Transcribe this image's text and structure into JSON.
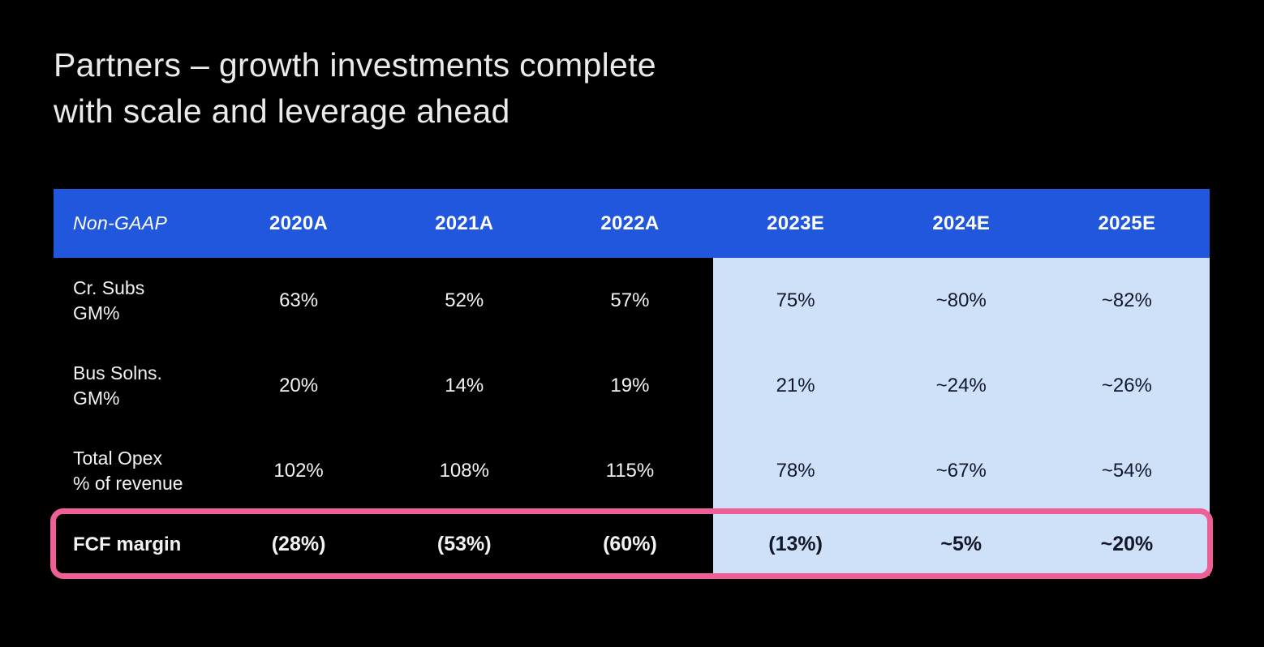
{
  "slide": {
    "title_line1": "Partners – growth investments complete",
    "title_line2": "with scale and leverage ahead"
  },
  "table": {
    "header": [
      "Non-GAAP",
      "2020A",
      "2021A",
      "2022A",
      "2023E",
      "2024E",
      "2025E"
    ],
    "rows": [
      {
        "label_lines": [
          "Cr. Subs",
          "GM%"
        ],
        "values": [
          "63%",
          "52%",
          "57%",
          "75%",
          "~80%",
          "~82%"
        ]
      },
      {
        "label_lines": [
          "Bus Solns.",
          "GM%"
        ],
        "values": [
          "20%",
          "14%",
          "19%",
          "21%",
          "~24%",
          "~26%"
        ]
      },
      {
        "label_lines": [
          "Total Opex",
          "% of revenue"
        ],
        "values": [
          "102%",
          "108%",
          "115%",
          "78%",
          "~67%",
          "~54%"
        ]
      },
      {
        "label_lines": [
          "FCF margin"
        ],
        "values": [
          "(28%)",
          "(53%)",
          "(60%)",
          "(13%)",
          "~5%",
          "~20%"
        ],
        "bold": true,
        "highlighted": true
      }
    ]
  },
  "chart_data": {
    "type": "table",
    "title": "Partners – growth investments complete with scale and leverage ahead",
    "columns": [
      "Non-GAAP",
      "2020A",
      "2021A",
      "2022A",
      "2023E",
      "2024E",
      "2025E"
    ],
    "rows": [
      [
        "Cr. Subs GM%",
        "63%",
        "52%",
        "57%",
        "75%",
        "~80%",
        "~82%"
      ],
      [
        "Bus Solns. GM%",
        "20%",
        "14%",
        "19%",
        "21%",
        "~24%",
        "~26%"
      ],
      [
        "Total Opex % of revenue",
        "102%",
        "108%",
        "115%",
        "78%",
        "~67%",
        "~54%"
      ],
      [
        "FCF margin",
        "(28%)",
        "(53%)",
        "(60%)",
        "(13%)",
        "~5%",
        "~20%"
      ]
    ],
    "notes": "Columns 2023E–2025E are estimates shown on a light blue panel; FCF margin row is outlined in pink"
  },
  "colors": {
    "background": "#000000",
    "title_text": "#eaeaea",
    "header_bg": "#2057dd",
    "header_text": "#ffffff",
    "body_text": "#f2f2f2",
    "estimate_bg": "#cfe1f8",
    "estimate_text": "#12172a",
    "highlight_outline": "#ef5f97"
  }
}
